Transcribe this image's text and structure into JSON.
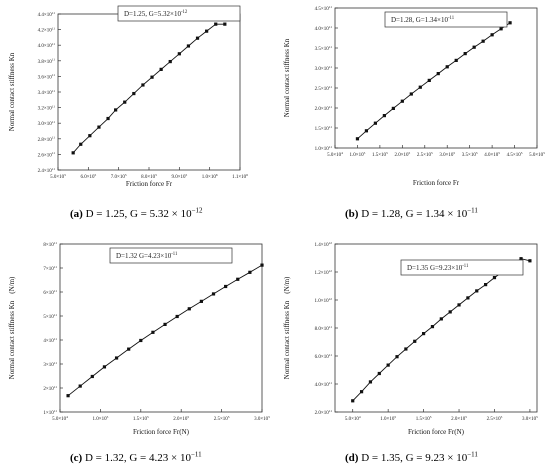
{
  "chart_data": [
    {
      "type": "scatter",
      "panel_label": "(a)",
      "caption_text": "D = 1.25, G = 5.32 × 10",
      "caption_exp": "−12",
      "legend_text": "D=1.25, G=5.32×10",
      "legend_exp": "-12",
      "legend_position": "top-center",
      "xlabel": "Friction force Fr",
      "ylabel": "Normal contact stiffness Kn",
      "xlim": [
        500000,
        1100000
      ],
      "ylim": [
        240000000000.0,
        440000000000.0
      ],
      "xticks": [
        {
          "value": 500000,
          "mant": "5.0×10",
          "exp": "5"
        },
        {
          "value": 600000,
          "mant": "6.0×10",
          "exp": "5"
        },
        {
          "value": 700000,
          "mant": "7.0×10",
          "exp": "5"
        },
        {
          "value": 800000,
          "mant": "8.0×10",
          "exp": "5"
        },
        {
          "value": 900000,
          "mant": "9.0×10",
          "exp": "5"
        },
        {
          "value": 1000000,
          "mant": "1.0×10",
          "exp": "6"
        },
        {
          "value": 1100000,
          "mant": "1.1×10",
          "exp": "6"
        }
      ],
      "yticks": [
        {
          "value": 240000000000.0,
          "mant": "2.4×10",
          "exp": "11"
        },
        {
          "value": 260000000000.0,
          "mant": "2.6×10",
          "exp": "11"
        },
        {
          "value": 280000000000.0,
          "mant": "2.8×10",
          "exp": "11"
        },
        {
          "value": 300000000000.0,
          "mant": "3.0×10",
          "exp": "11"
        },
        {
          "value": 320000000000.0,
          "mant": "3.2×10",
          "exp": "11"
        },
        {
          "value": 340000000000.0,
          "mant": "3.4×10",
          "exp": "11"
        },
        {
          "value": 360000000000.0,
          "mant": "3.6×10",
          "exp": "11"
        },
        {
          "value": 380000000000.0,
          "mant": "3.8×10",
          "exp": "11"
        },
        {
          "value": 400000000000.0,
          "mant": "4.0×10",
          "exp": "11"
        },
        {
          "value": 420000000000.0,
          "mant": "4.2×10",
          "exp": "11"
        },
        {
          "value": 440000000000.0,
          "mant": "4.4×10",
          "exp": "11"
        }
      ],
      "x": [
        550000,
        575000,
        605000,
        635000,
        665000,
        690000,
        720000,
        750000,
        780000,
        810000,
        840000,
        870000,
        900000,
        930000,
        960000,
        990000,
        1020000,
        1050000
      ],
      "y": [
        262000000000.0,
        273000000000.0,
        284000000000.0,
        295000000000.0,
        306000000000.0,
        317000000000.0,
        327000000000.0,
        338000000000.0,
        349000000000.0,
        359000000000.0,
        369000000000.0,
        379000000000.0,
        389000000000.0,
        399000000000.0,
        409000000000.0,
        418000000000.0,
        427000000000.0,
        427000000000.0
      ]
    },
    {
      "type": "scatter",
      "panel_label": "(b)",
      "caption_text": "D = 1.28, G = 1.34 × 10",
      "caption_exp": "−11",
      "legend_text": "D=1.28, G=1.34×10",
      "legend_exp": "-11",
      "legend_position": "top-center",
      "xlabel": "Friction force Fr",
      "ylabel": "Normal contact stiffness Kn",
      "xlim": [
        50000,
        500000
      ],
      "ylim": [
        100000000000.0,
        450000000000.0
      ],
      "xticks": [
        {
          "value": 50000,
          "mant": "5.0×10",
          "exp": "4"
        },
        {
          "value": 100000,
          "mant": "1.0×10",
          "exp": "5"
        },
        {
          "value": 150000,
          "mant": "1.5×10",
          "exp": "5"
        },
        {
          "value": 200000,
          "mant": "2.0×10",
          "exp": "5"
        },
        {
          "value": 250000,
          "mant": "2.5×10",
          "exp": "5"
        },
        {
          "value": 300000,
          "mant": "3.0×10",
          "exp": "5"
        },
        {
          "value": 350000,
          "mant": "3.5×10",
          "exp": "5"
        },
        {
          "value": 400000,
          "mant": "4.0×10",
          "exp": "5"
        },
        {
          "value": 450000,
          "mant": "4.5×10",
          "exp": "5"
        },
        {
          "value": 500000,
          "mant": "5.0×10",
          "exp": "5"
        }
      ],
      "yticks": [
        {
          "value": 100000000000.0,
          "mant": "1.0×10",
          "exp": "11"
        },
        {
          "value": 150000000000.0,
          "mant": "1.5×10",
          "exp": "11"
        },
        {
          "value": 200000000000.0,
          "mant": "2.0×10",
          "exp": "11"
        },
        {
          "value": 250000000000.0,
          "mant": "2.5×10",
          "exp": "11"
        },
        {
          "value": 300000000000.0,
          "mant": "3.0×10",
          "exp": "11"
        },
        {
          "value": 350000000000.0,
          "mant": "3.5×10",
          "exp": "11"
        },
        {
          "value": 400000000000.0,
          "mant": "4.0×10",
          "exp": "11"
        },
        {
          "value": 450000000000.0,
          "mant": "4.5×10",
          "exp": "11"
        }
      ],
      "x": [
        100000,
        120000,
        140000,
        160000,
        180000,
        200000,
        220000,
        240000,
        260000,
        280000,
        300000,
        320000,
        340000,
        360000,
        380000,
        400000,
        420000,
        440000
      ],
      "y": [
        123000000000.0,
        143000000000.0,
        162000000000.0,
        181000000000.0,
        199000000000.0,
        217000000000.0,
        235000000000.0,
        252000000000.0,
        269000000000.0,
        286000000000.0,
        303000000000.0,
        319000000000.0,
        336000000000.0,
        352000000000.0,
        367000000000.0,
        383000000000.0,
        398000000000.0,
        413000000000.0
      ]
    },
    {
      "type": "scatter",
      "panel_label": "(c)",
      "caption_text": "D = 1.32, G = 4.23 × 10",
      "caption_exp": "−11",
      "legend_text": "D=1.32  G=4.23×10",
      "legend_exp": "-11",
      "legend_position": "top-center",
      "xlabel": "Friction force Fr(N)",
      "ylabel": "Normal contact stiffness Kn　(N/m)",
      "xlim": [
        50000,
        300000
      ],
      "ylim": [
        100000000000.0,
        800000000000.0
      ],
      "xticks": [
        {
          "value": 50000,
          "mant": "5.0×10",
          "exp": "4"
        },
        {
          "value": 100000,
          "mant": "1.0×10",
          "exp": "5"
        },
        {
          "value": 150000,
          "mant": "1.5×10",
          "exp": "5"
        },
        {
          "value": 200000,
          "mant": "2.0×10",
          "exp": "5"
        },
        {
          "value": 250000,
          "mant": "2.5×10",
          "exp": "5"
        },
        {
          "value": 300000,
          "mant": "3.0×10",
          "exp": "5"
        }
      ],
      "yticks": [
        {
          "value": 100000000000.0,
          "mant": "1×10",
          "exp": "11"
        },
        {
          "value": 200000000000.0,
          "mant": "2×10",
          "exp": "11"
        },
        {
          "value": 300000000000.0,
          "mant": "3×10",
          "exp": "11"
        },
        {
          "value": 400000000000.0,
          "mant": "4×10",
          "exp": "11"
        },
        {
          "value": 500000000000.0,
          "mant": "5×10",
          "exp": "11"
        },
        {
          "value": 600000000000.0,
          "mant": "6×10",
          "exp": "11"
        },
        {
          "value": 700000000000.0,
          "mant": "7×10",
          "exp": "11"
        },
        {
          "value": 800000000000.0,
          "mant": "8×10",
          "exp": "11"
        }
      ],
      "x": [
        60000,
        75000,
        90000,
        105000,
        120000,
        135000,
        150000,
        165000,
        180000,
        195000,
        210000,
        225000,
        240000,
        255000,
        270000,
        285000,
        300000
      ],
      "y": [
        168000000000.0,
        208000000000.0,
        248000000000.0,
        288000000000.0,
        325000000000.0,
        362000000000.0,
        398000000000.0,
        432000000000.0,
        465000000000.0,
        498000000000.0,
        530000000000.0,
        561000000000.0,
        592000000000.0,
        623000000000.0,
        653000000000.0,
        682000000000.0,
        712000000000.0
      ]
    },
    {
      "type": "scatter",
      "panel_label": "(d)",
      "caption_text": "D = 1.35, G = 9.23 × 10",
      "caption_exp": "−11",
      "legend_text": "D=1.35  G=9.23×10",
      "legend_exp": "-11",
      "legend_position": "top-left",
      "xlabel": "Friction force Fr(N)",
      "ylabel": "Normal contact stiffness Kn　(N/m)",
      "xlim": [
        25000,
        310000
      ],
      "ylim": [
        200000000000.0,
        1400000000000.0
      ],
      "xticks": [
        {
          "value": 50000,
          "mant": "5.0×10",
          "exp": "4"
        },
        {
          "value": 100000,
          "mant": "1.0×10",
          "exp": "5"
        },
        {
          "value": 150000,
          "mant": "1.5×10",
          "exp": "5"
        },
        {
          "value": 200000,
          "mant": "2.0×10",
          "exp": "5"
        },
        {
          "value": 250000,
          "mant": "2.5×10",
          "exp": "5"
        },
        {
          "value": 300000,
          "mant": "3.0×10",
          "exp": "5"
        }
      ],
      "yticks": [
        {
          "value": 200000000000.0,
          "mant": "2.0×10",
          "exp": "11"
        },
        {
          "value": 400000000000.0,
          "mant": "4.0×10",
          "exp": "11"
        },
        {
          "value": 600000000000.0,
          "mant": "6.0×10",
          "exp": "11"
        },
        {
          "value": 800000000000.0,
          "mant": "8.0×10",
          "exp": "11"
        },
        {
          "value": 1000000000000.0,
          "mant": "1.0×10",
          "exp": "12"
        },
        {
          "value": 1200000000000.0,
          "mant": "1.2×10",
          "exp": "12"
        },
        {
          "value": 1400000000000.0,
          "mant": "1.4×10",
          "exp": "12"
        }
      ],
      "x": [
        50000,
        62500,
        75000,
        87500,
        100000,
        112500,
        125000,
        137500,
        150000,
        162500,
        175000,
        187500,
        200000,
        212500,
        225000,
        237500,
        250000,
        262500,
        275000,
        287500,
        300000
      ],
      "y": [
        280000000000.0,
        345000000000.0,
        415000000000.0,
        475000000000.0,
        535000000000.0,
        595000000000.0,
        650000000000.0,
        705000000000.0,
        760000000000.0,
        810000000000.0,
        865000000000.0,
        915000000000.0,
        965000000000.0,
        1015000000000.0,
        1065000000000.0,
        1110000000000.0,
        1160000000000.0,
        1205000000000.0,
        1250000000000.0,
        1295000000000.0,
        1280000000000.0
      ]
    }
  ]
}
